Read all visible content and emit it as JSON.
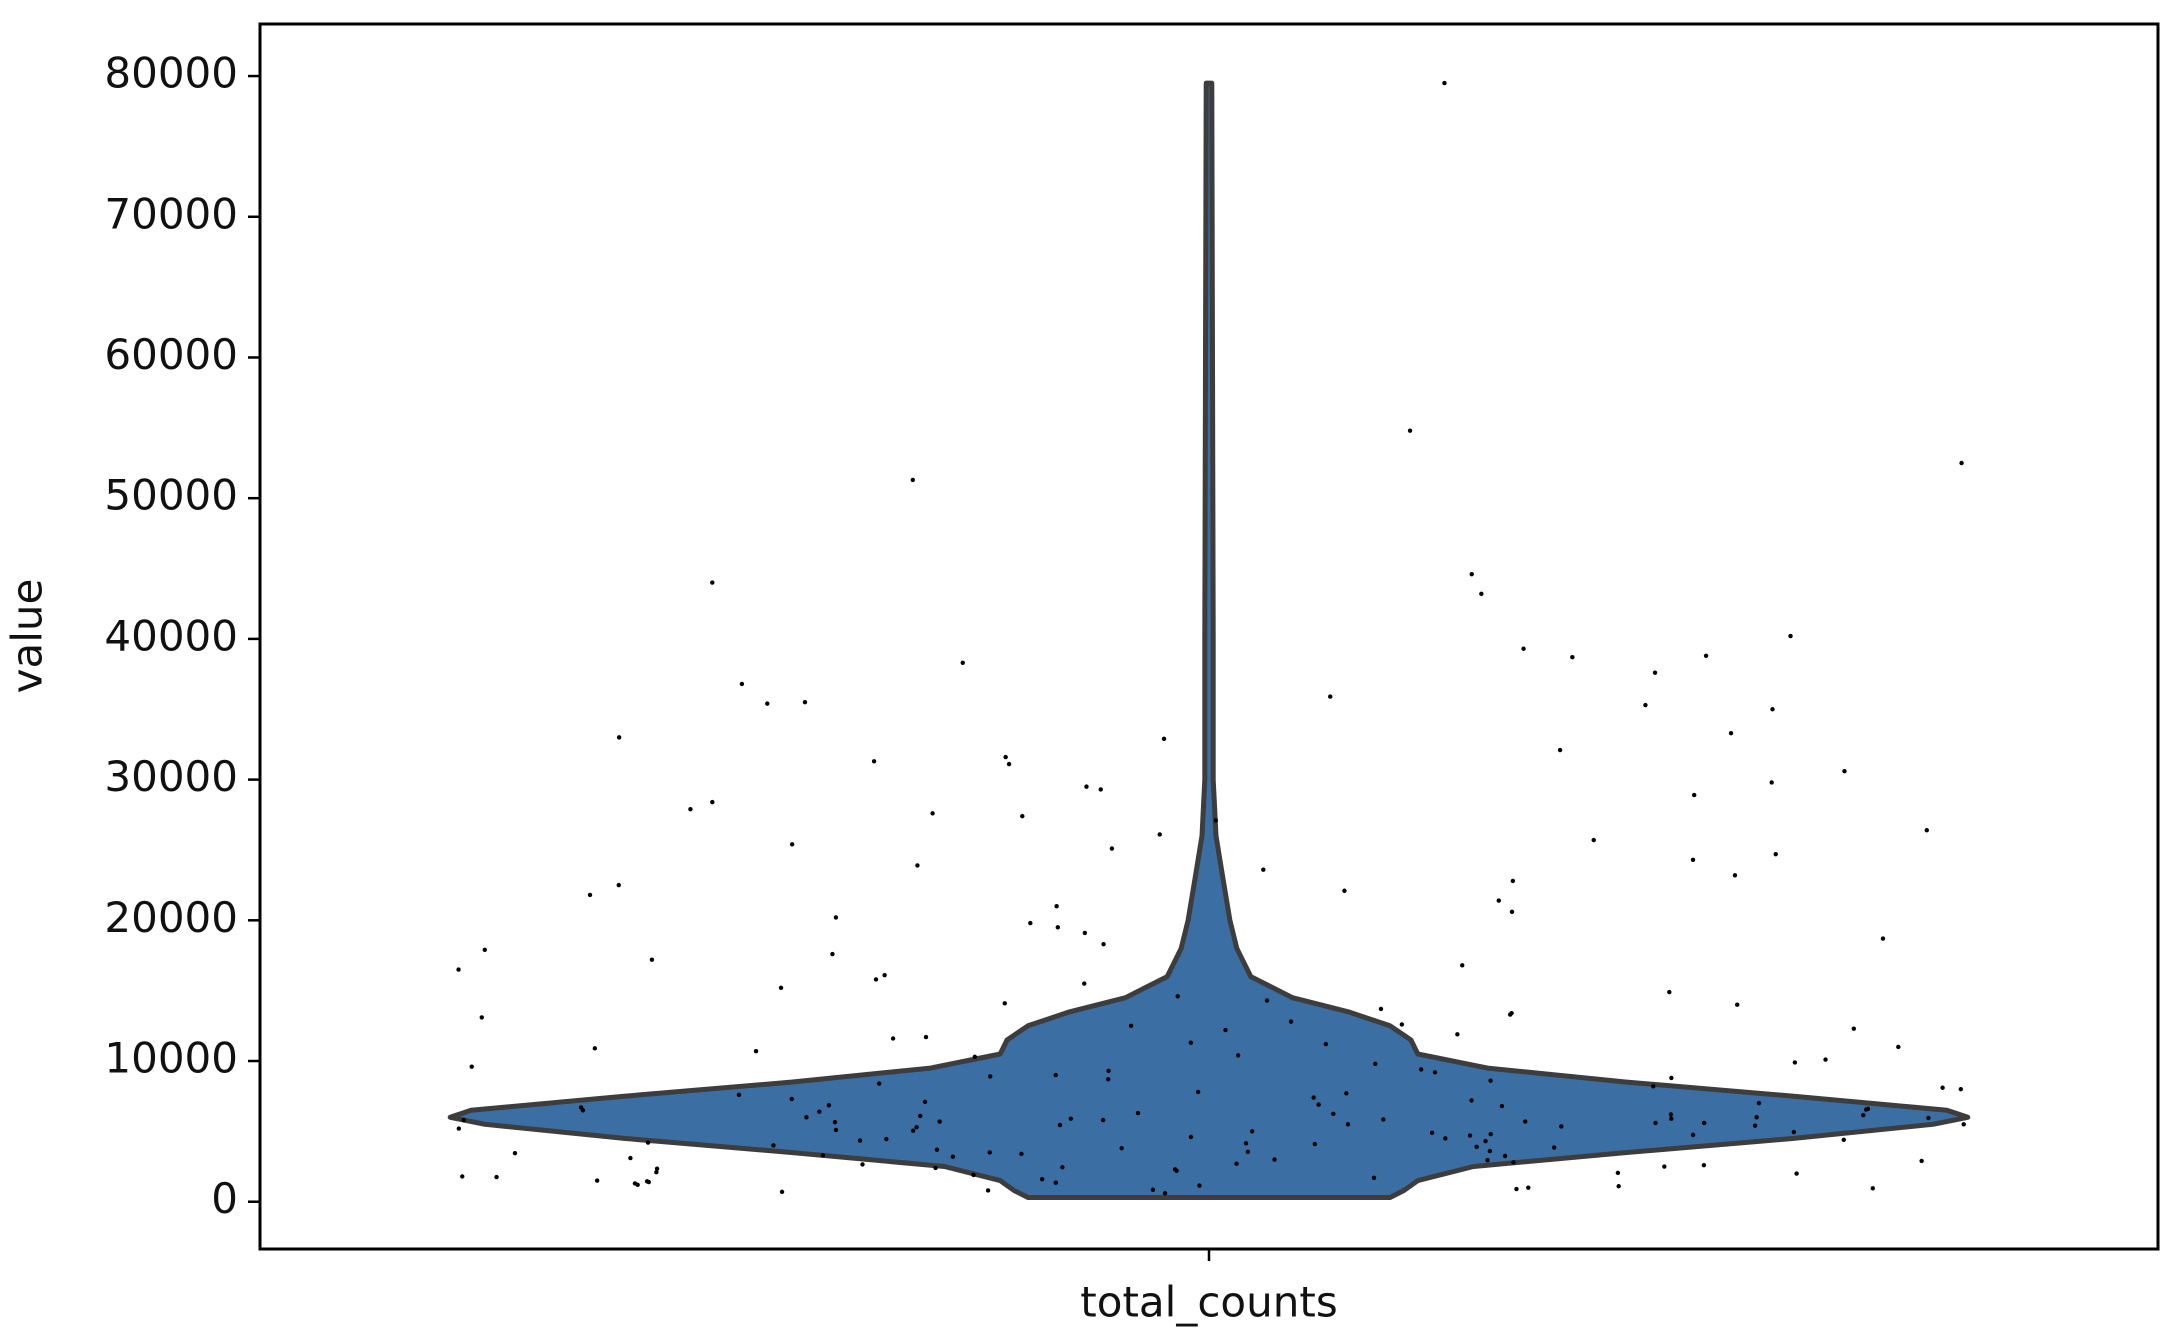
{
  "chart_data": {
    "type": "violin",
    "categories": [
      "total_counts"
    ],
    "ylabel": "value",
    "ylim": [
      -3360,
      83700
    ],
    "yticks": [
      0,
      10000,
      20000,
      30000,
      40000,
      50000,
      60000,
      70000,
      80000
    ],
    "color": "#3b6fa3",
    "violin": {
      "y": [
        300,
        800,
        1500,
        2500,
        3500,
        4500,
        5500,
        6000,
        6500,
        7500,
        8500,
        9500,
        10500,
        11500,
        12500,
        13500,
        14500,
        16000,
        18000,
        20000,
        23000,
        26000,
        30000,
        40000,
        79500
      ],
      "half_width": [
        130,
        140,
        150,
        190,
        300,
        420,
        520,
        545,
        530,
        420,
        300,
        200,
        150,
        145,
        130,
        100,
        60,
        30,
        20,
        15,
        10,
        5,
        3,
        3,
        2
      ]
    },
    "values": [
      79500,
      51300,
      54800,
      52500,
      43200,
      44600,
      44000,
      40200,
      39300,
      38800,
      38700,
      38300,
      37600,
      36800,
      35900,
      35500,
      35400,
      35300,
      35000,
      33300,
      33000,
      32900,
      32100,
      31600,
      31300,
      31100,
      30600,
      29800,
      29500,
      29300,
      28900,
      28400,
      27900,
      27600,
      27400,
      27100,
      26400,
      26100,
      25700,
      25400,
      25100,
      24700,
      24300,
      23900,
      23600,
      23200,
      22800,
      22500,
      22100,
      21800,
      21400,
      21000,
      20600,
      20200,
      19800,
      19500,
      19100,
      18700,
      18300,
      17900,
      17600,
      17200,
      16800,
      16500,
      16100,
      15800,
      15500,
      15200,
      14900,
      14600,
      14300,
      14000,
      13700,
      13400,
      13100,
      12800,
      12500,
      12200,
      11900,
      11600,
      11300,
      11000,
      10700,
      10400,
      10100,
      9800,
      9600,
      9400,
      9200,
      9000,
      8800,
      8600,
      8400,
      8200,
      8000,
      7800,
      7600,
      7400,
      7200,
      7000,
      6900,
      6800,
      6700,
      6600,
      6500,
      6400,
      6300,
      6200,
      6100,
      6000,
      6000,
      5900,
      5900,
      5800,
      5800,
      5700,
      5700,
      5600,
      5600,
      5500,
      5500,
      5400,
      5300,
      5200,
      5100,
      5000,
      4900,
      4800,
      4700,
      4600,
      4500,
      4400,
      4300,
      4200,
      4100,
      4000,
      3900,
      3800,
      3700,
      3600,
      3500,
      3400,
      3300,
      3200,
      3100,
      3000,
      2900,
      2800,
      2700,
      2600,
      2500,
      2400,
      2300,
      2200,
      2100,
      2000,
      1900,
      1800,
      1700,
      1600,
      1500,
      1400,
      1300,
      1200,
      1100,
      1000,
      900,
      800,
      700,
      600,
      12300,
      11700,
      10900,
      9900,
      8900,
      8100,
      7300,
      6850,
      6250,
      5950,
      5650,
      5350,
      5050,
      4750,
      4450,
      4150,
      3850,
      3550,
      3250,
      2950,
      2650,
      2350,
      2050,
      1750,
      1450,
      1150,
      850,
      14100,
      13300,
      12600,
      11200,
      10300,
      9300,
      8700,
      7700,
      7100,
      6550,
      6150,
      5850,
      5450,
      4950,
      4350,
      3450,
      2450,
      1350,
      950
    ]
  }
}
